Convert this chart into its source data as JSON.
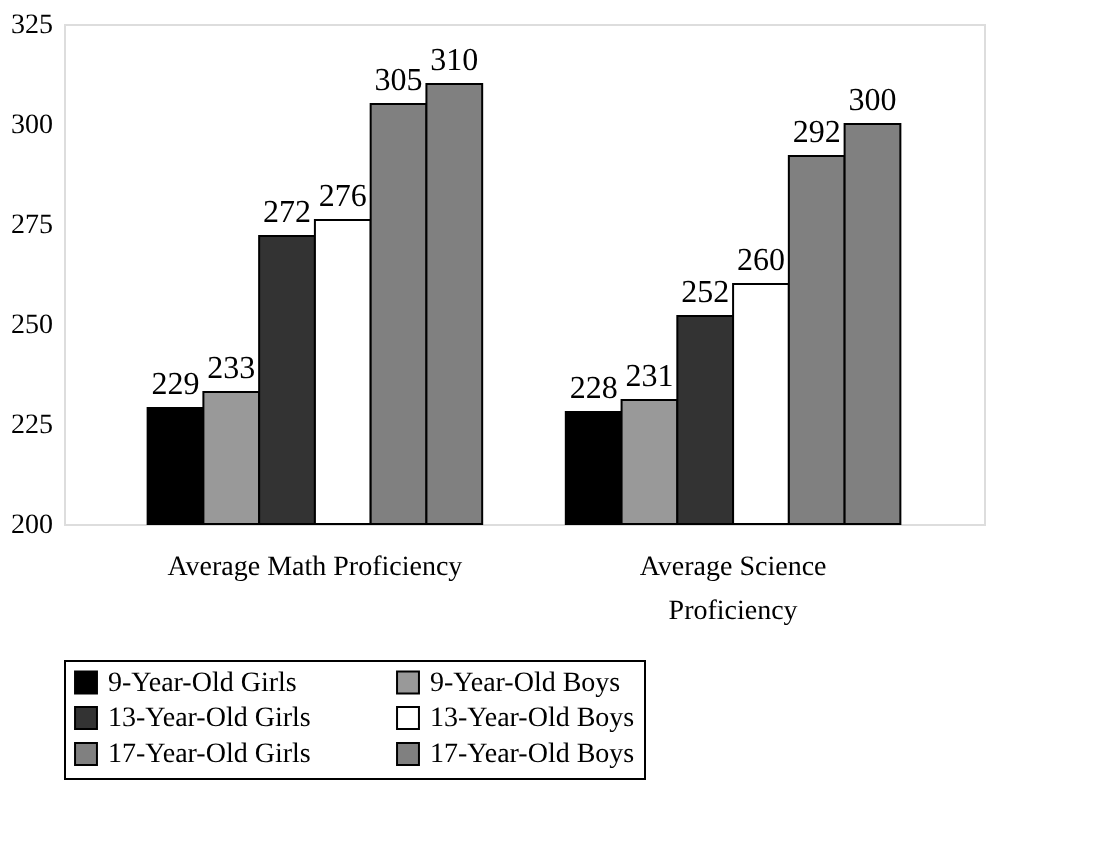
{
  "chart_data": {
    "type": "bar",
    "categories": [
      "Average Math Proficiency",
      "Average Science Proficiency"
    ],
    "series": [
      {
        "name": "9-Year-Old Girls",
        "color": "#000000",
        "values": [
          229,
          228
        ]
      },
      {
        "name": "9-Year-Old Boys",
        "color": "#999999",
        "values": [
          233,
          231
        ]
      },
      {
        "name": "13-Year-Old Girls",
        "color": "#333333",
        "values": [
          272,
          252
        ]
      },
      {
        "name": "13-Year-Old Boys",
        "color": "#ffffff",
        "values": [
          276,
          260
        ]
      },
      {
        "name": "17-Year-Old Girls",
        "color": "#808080",
        "values": [
          305,
          292
        ]
      },
      {
        "name": "17-Year-Old Boys",
        "color": "#808080",
        "values": [
          310,
          300
        ]
      }
    ],
    "ylim": [
      200,
      325
    ],
    "yticks": [
      200,
      225,
      250,
      275,
      300,
      325
    ],
    "grid": false,
    "legend": "bottom",
    "data_labels": true
  }
}
